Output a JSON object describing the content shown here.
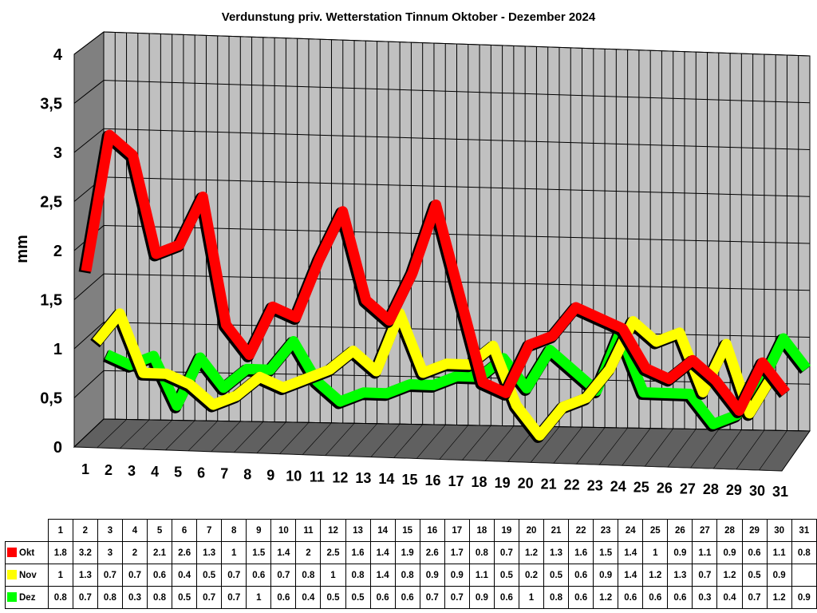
{
  "chart_data": {
    "type": "line",
    "title": "Verdunstung priv. Wetterstation Tinnum Oktober - Dezember 2024",
    "ylabel": "mm",
    "xlabel": "",
    "ylim": [
      0,
      4
    ],
    "yticks": [
      "0",
      "0,5",
      "1",
      "1,5",
      "2",
      "2,5",
      "3",
      "3,5",
      "4"
    ],
    "grid": true,
    "categories": [
      "1",
      "2",
      "3",
      "4",
      "5",
      "6",
      "7",
      "8",
      "9",
      "10",
      "11",
      "12",
      "13",
      "14",
      "15",
      "16",
      "17",
      "18",
      "19",
      "20",
      "21",
      "22",
      "23",
      "24",
      "25",
      "26",
      "27",
      "28",
      "29",
      "30",
      "31"
    ],
    "series": [
      {
        "name": "Okt",
        "color": "#ff0000",
        "values": [
          1.8,
          3.2,
          3,
          2,
          2.1,
          2.6,
          1.3,
          1,
          1.5,
          1.4,
          2,
          2.5,
          1.6,
          1.4,
          1.9,
          2.6,
          1.7,
          0.8,
          0.7,
          1.2,
          1.3,
          1.6,
          1.5,
          1.4,
          1,
          0.9,
          1.1,
          0.9,
          0.6,
          1.1,
          0.8
        ]
      },
      {
        "name": "Nov",
        "color": "#ffff00",
        "values": [
          1,
          1.3,
          0.7,
          0.7,
          0.6,
          0.4,
          0.5,
          0.7,
          0.6,
          0.7,
          0.8,
          1,
          0.8,
          1.4,
          0.8,
          0.9,
          0.9,
          1.1,
          0.5,
          0.2,
          0.5,
          0.6,
          0.9,
          1.4,
          1.2,
          1.3,
          0.7,
          1.2,
          0.5,
          0.9,
          null
        ]
      },
      {
        "name": "Dez",
        "color": "#00ff00",
        "values": [
          0.8,
          0.7,
          0.8,
          0.3,
          0.8,
          0.5,
          0.7,
          0.7,
          1,
          0.6,
          0.4,
          0.5,
          0.5,
          0.6,
          0.6,
          0.7,
          0.7,
          0.9,
          0.6,
          1,
          0.8,
          0.6,
          1.2,
          0.6,
          0.6,
          0.6,
          0.3,
          0.4,
          0.7,
          1.2,
          0.9
        ]
      }
    ]
  }
}
